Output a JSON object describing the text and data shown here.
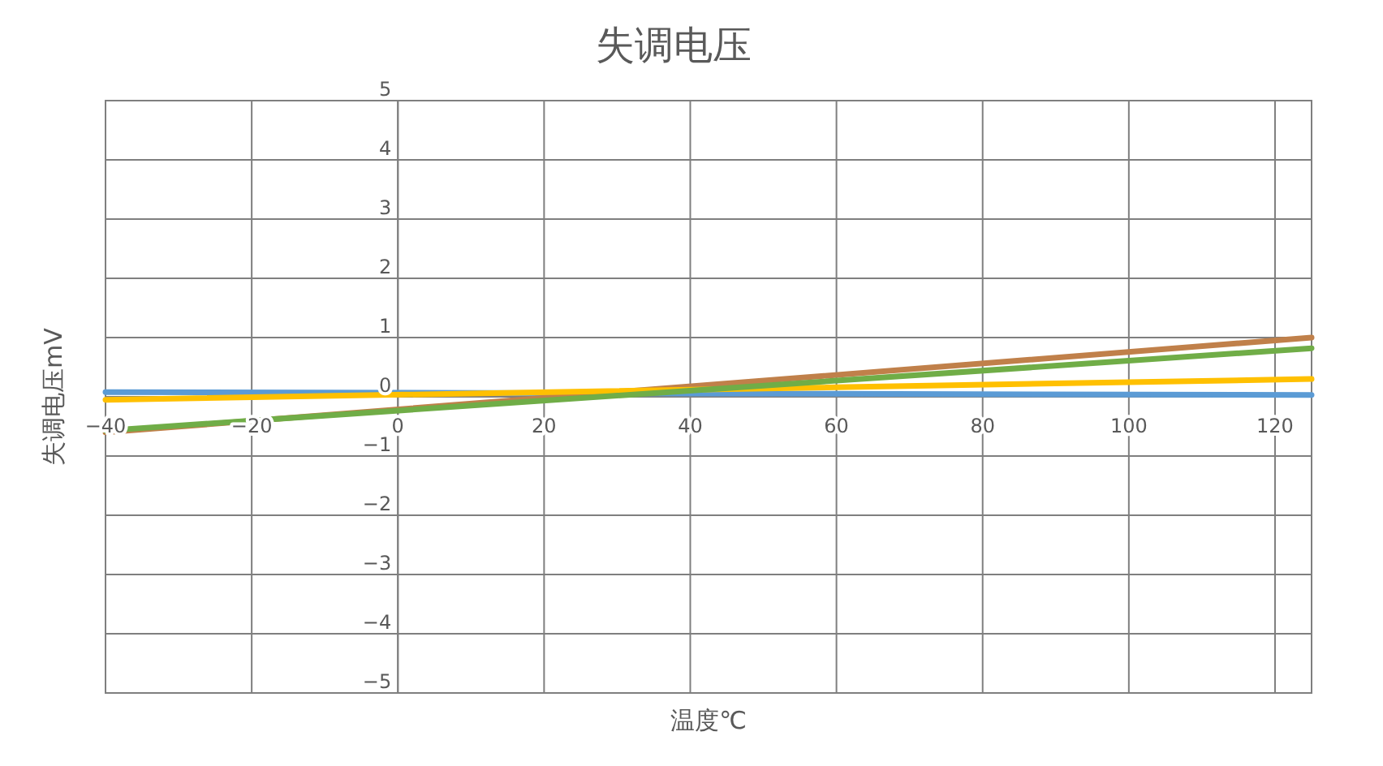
{
  "chart_data": {
    "type": "line",
    "title": "失调电压",
    "xlabel": "温度℃",
    "ylabel": "失调电压mV",
    "xlim": [
      -40,
      125
    ],
    "xticks": [
      -40,
      -20,
      0,
      20,
      40,
      60,
      80,
      100,
      120
    ],
    "ylim": [
      -5,
      5
    ],
    "yticks": [
      -5,
      -4,
      -3,
      -2,
      -1,
      0,
      1,
      2,
      3,
      4,
      5
    ],
    "grid": true,
    "marker": "none",
    "line_style": "solid",
    "x": [
      -40,
      125
    ],
    "series": [
      {
        "color": "#5b9bd5",
        "values": [
          0.08,
          0.03
        ]
      },
      {
        "color": "#c0804a",
        "values": [
          -0.6,
          1.0
        ]
      },
      {
        "color": "#ffc000",
        "values": [
          -0.05,
          0.3
        ]
      },
      {
        "color": "#70ad47",
        "values": [
          -0.57,
          0.82
        ]
      }
    ]
  }
}
